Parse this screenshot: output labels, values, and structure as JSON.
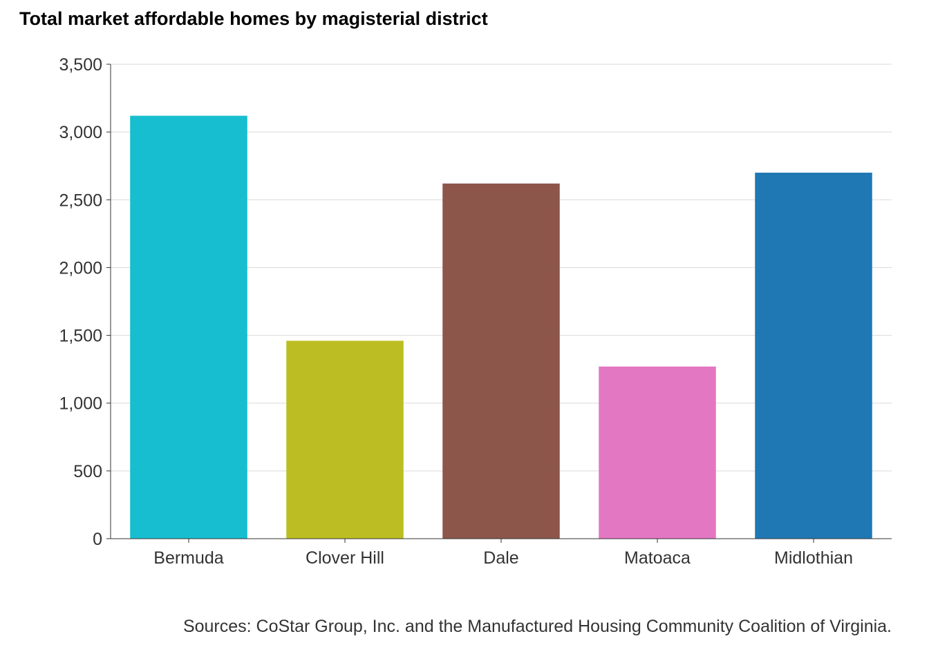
{
  "chart_data": {
    "type": "bar",
    "title": "Total market affordable homes by magisterial district",
    "xlabel": "",
    "ylabel": "",
    "categories": [
      "Bermuda",
      "Clover Hill",
      "Dale",
      "Matoaca",
      "Midlothian"
    ],
    "values": [
      3120,
      1460,
      2620,
      1270,
      2700
    ],
    "colors": [
      "#17BECF",
      "#BCBD22",
      "#8C564B",
      "#E377C2",
      "#1F77B4"
    ],
    "ylim": [
      0,
      3500
    ],
    "yticks": [
      0,
      500,
      1000,
      1500,
      2000,
      2500,
      3000,
      3500
    ],
    "ytick_labels": [
      "0",
      "500",
      "1,000",
      "1,500",
      "2,000",
      "2,500",
      "3,000",
      "3,500"
    ],
    "grid": "horizontal",
    "legend": "none",
    "caption": "Sources: CoStar Group, Inc. and the Manufactured Housing Community Coalition of Virginia."
  }
}
